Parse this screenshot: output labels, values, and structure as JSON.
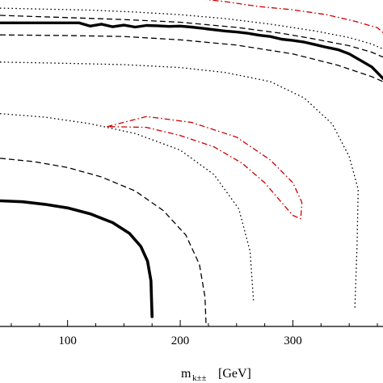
{
  "chart_data": {
    "type": "line",
    "title": "",
    "xlabel": {
      "symbol": "m",
      "subscript": "k±±",
      "unit": "[GeV]"
    },
    "ylabel": "",
    "xlim": [
      40,
      380
    ],
    "ylim": [
      0,
      1
    ],
    "x_ticks": [
      100,
      200,
      300
    ],
    "grid": false,
    "legend": "none",
    "series": [
      {
        "style": "solid-thick",
        "color": "#000000",
        "x": [
          40,
          60,
          80,
          100,
          120,
          140,
          155,
          165,
          171,
          174,
          175
        ],
        "y": [
          0.385,
          0.382,
          0.374,
          0.363,
          0.345,
          0.318,
          0.285,
          0.245,
          0.2,
          0.14,
          0.03
        ]
      },
      {
        "style": "dashed",
        "color": "#000000",
        "x": [
          40,
          70,
          100,
          130,
          160,
          185,
          205,
          217,
          222,
          223
        ],
        "y": [
          0.515,
          0.505,
          0.487,
          0.458,
          0.415,
          0.355,
          0.28,
          0.19,
          0.09,
          0.0
        ]
      },
      {
        "style": "dotted",
        "color": "#000000",
        "x": [
          40,
          80,
          120,
          160,
          200,
          230,
          252,
          262,
          265
        ],
        "y": [
          0.652,
          0.641,
          0.621,
          0.591,
          0.54,
          0.465,
          0.36,
          0.23,
          0.08
        ]
      },
      {
        "style": "dashdot",
        "color": "#cc0000",
        "x": [
          135,
          170,
          210,
          250,
          280,
          300,
          308,
          307,
          300,
          290,
          275,
          255,
          230,
          200,
          170,
          140,
          135
        ],
        "y": [
          0.612,
          0.643,
          0.625,
          0.58,
          0.51,
          0.44,
          0.38,
          0.33,
          0.34,
          0.38,
          0.44,
          0.5,
          0.55,
          0.585,
          0.61,
          0.612,
          0.612
        ]
      },
      {
        "style": "dotted",
        "color": "#000000",
        "x": [
          40,
          100,
          150,
          200,
          240,
          280,
          310,
          335,
          350,
          358,
          357,
          355
        ],
        "y": [
          0.81,
          0.806,
          0.802,
          0.793,
          0.778,
          0.75,
          0.7,
          0.62,
          0.52,
          0.42,
          0.25,
          0.05
        ]
      },
      {
        "style": "dashed",
        "color": "#000000",
        "x": [
          40,
          100,
          150,
          200,
          250,
          300,
          340,
          370,
          380
        ],
        "y": [
          0.893,
          0.891,
          0.888,
          0.878,
          0.862,
          0.835,
          0.8,
          0.765,
          0.75
        ]
      },
      {
        "style": "solid-thick-jagged",
        "color": "#000000",
        "x": [
          40,
          80,
          110,
          120,
          130,
          140,
          150,
          160,
          170,
          180,
          190,
          200,
          210,
          220,
          230,
          240,
          250,
          260,
          270,
          280,
          290,
          300,
          310,
          320,
          330,
          340,
          350,
          360,
          370,
          380
        ],
        "y": [
          0.93,
          0.93,
          0.93,
          0.92,
          0.926,
          0.918,
          0.923,
          0.917,
          0.922,
          0.921,
          0.919,
          0.92,
          0.917,
          0.913,
          0.909,
          0.905,
          0.902,
          0.898,
          0.892,
          0.888,
          0.88,
          0.876,
          0.871,
          0.863,
          0.855,
          0.848,
          0.835,
          0.815,
          0.795,
          0.76
        ]
      },
      {
        "style": "dashed",
        "color": "#000000",
        "x": [
          40,
          100,
          150,
          200,
          250,
          290,
          320,
          350,
          370,
          380
        ],
        "y": [
          0.953,
          0.946,
          0.94,
          0.932,
          0.916,
          0.898,
          0.88,
          0.86,
          0.84,
          0.825
        ]
      },
      {
        "style": "dotted",
        "color": "#000000",
        "x": [
          40,
          80,
          120,
          160,
          200,
          240,
          280,
          320,
          350,
          370,
          380
        ],
        "y": [
          0.975,
          0.972,
          0.969,
          0.963,
          0.955,
          0.943,
          0.926,
          0.905,
          0.885,
          0.865,
          0.85
        ]
      },
      {
        "style": "dashdot",
        "color": "#cc0000",
        "x": [
          125,
          160,
          200,
          240,
          270,
          300,
          330,
          355,
          375,
          380
        ],
        "y": [
          1.04,
          1.03,
          1.01,
          0.995,
          0.98,
          0.97,
          0.955,
          0.935,
          0.915,
          0.9
        ]
      }
    ]
  }
}
